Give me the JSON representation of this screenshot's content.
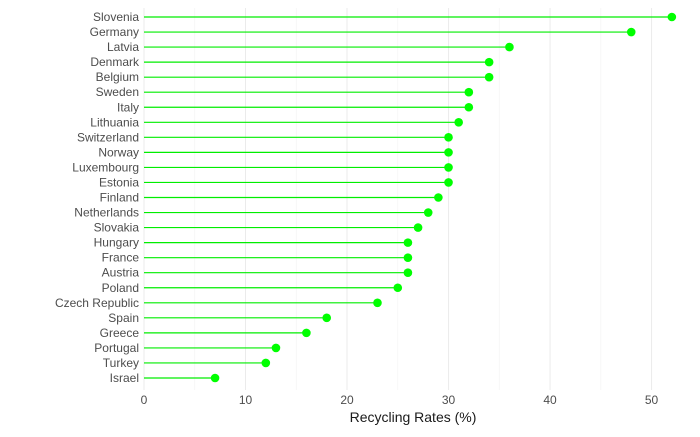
{
  "chart_data": {
    "type": "lollipop",
    "categories": [
      "Slovenia",
      "Germany",
      "Latvia",
      "Denmark",
      "Belgium",
      "Sweden",
      "Italy",
      "Lithuania",
      "Switzerland",
      "Norway",
      "Luxembourg",
      "Estonia",
      "Finland",
      "Netherlands",
      "Slovakia",
      "Hungary",
      "France",
      "Austria",
      "Poland",
      "Czech Republic",
      "Spain",
      "Greece",
      "Portugal",
      "Turkey",
      "Israel"
    ],
    "values": [
      52,
      48,
      36,
      34,
      34,
      32,
      32,
      31,
      30,
      30,
      30,
      30,
      29,
      28,
      27,
      26,
      26,
      26,
      25,
      23,
      18,
      16,
      13,
      12,
      7
    ],
    "xlabel": "Recycling Rates (%)",
    "ylabel": "",
    "xlim": [
      0,
      53
    ],
    "xticks": [
      0,
      10,
      20,
      30,
      40,
      50
    ],
    "grid": true,
    "colors": {
      "mark": "#00ff00",
      "stem": "#00ee00",
      "grid_major": "#ebebeb",
      "grid_minor": "#f5f5f5"
    }
  }
}
